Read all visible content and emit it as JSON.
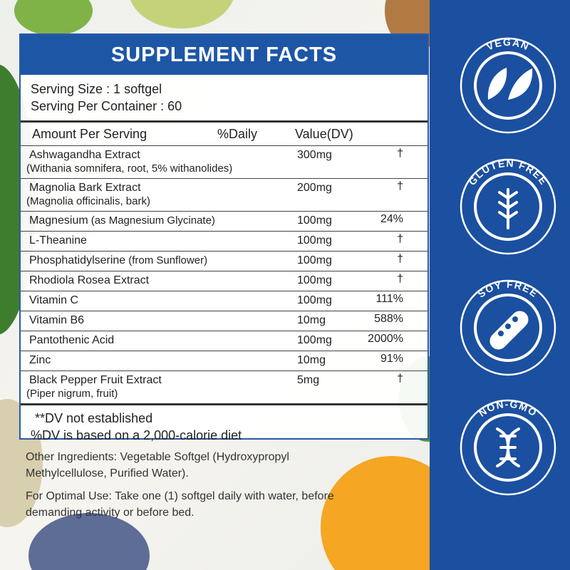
{
  "header": {
    "title": "SUPPLEMENT FACTS"
  },
  "serving": {
    "size": "Serving Size : 1 softgel",
    "per_container": "Serving Per Container : 60"
  },
  "table": {
    "header": [
      "Amount Per Serving",
      "%Daily",
      "Value(DV)"
    ],
    "rows": [
      {
        "name": "Ashwagandha Extract",
        "detail": "(Withania somnifera, root, 5% withanolides)",
        "amount": "300mg",
        "dv": "†"
      },
      {
        "name": "Magnolia Bark Extract",
        "detail": "(Magnolia officinalis, bark)",
        "amount": "200mg",
        "dv": "†"
      },
      {
        "name": "Magnesium",
        "note": "(as Magnesium Glycinate)",
        "amount": "100mg",
        "dv": "24%"
      },
      {
        "name": "L-Theanine",
        "amount": "100mg",
        "dv": "†"
      },
      {
        "name": "Phosphatidylserine",
        "note": "(from Sunflower)",
        "amount": "100mg",
        "dv": "†"
      },
      {
        "name": "Rhodiola Rosea Extract",
        "amount": "100mg",
        "dv": "†"
      },
      {
        "name": "Vitamin C",
        "amount": "100mg",
        "dv": "111%"
      },
      {
        "name": "Vitamin B6",
        "amount": "10mg",
        "dv": "588%"
      },
      {
        "name": "Pantothenic Acid",
        "amount": "100mg",
        "dv": "2000%"
      },
      {
        "name": "Zinc",
        "amount": "10mg",
        "dv": "91%"
      },
      {
        "name": "Black Pepper Fruit Extract",
        "detail": "(Piper nigrum, fruit)",
        "amount": "5mg",
        "dv": "†"
      }
    ]
  },
  "footnotes": [
    "**DV not established",
    "%DV is based on a 2,000-calorie diet"
  ],
  "other_ingredients": "Other Ingredients: Vegetable Softgel (Hydroxypropyl Methylcellulose, Purified Water).",
  "directions": "For Optimal Use: Take one (1) softgel daily with water, before demanding activity or before bed.",
  "badges": [
    "VEGAN",
    "GLUTEN FREE",
    "SOY FREE",
    "NON-GMO"
  ]
}
